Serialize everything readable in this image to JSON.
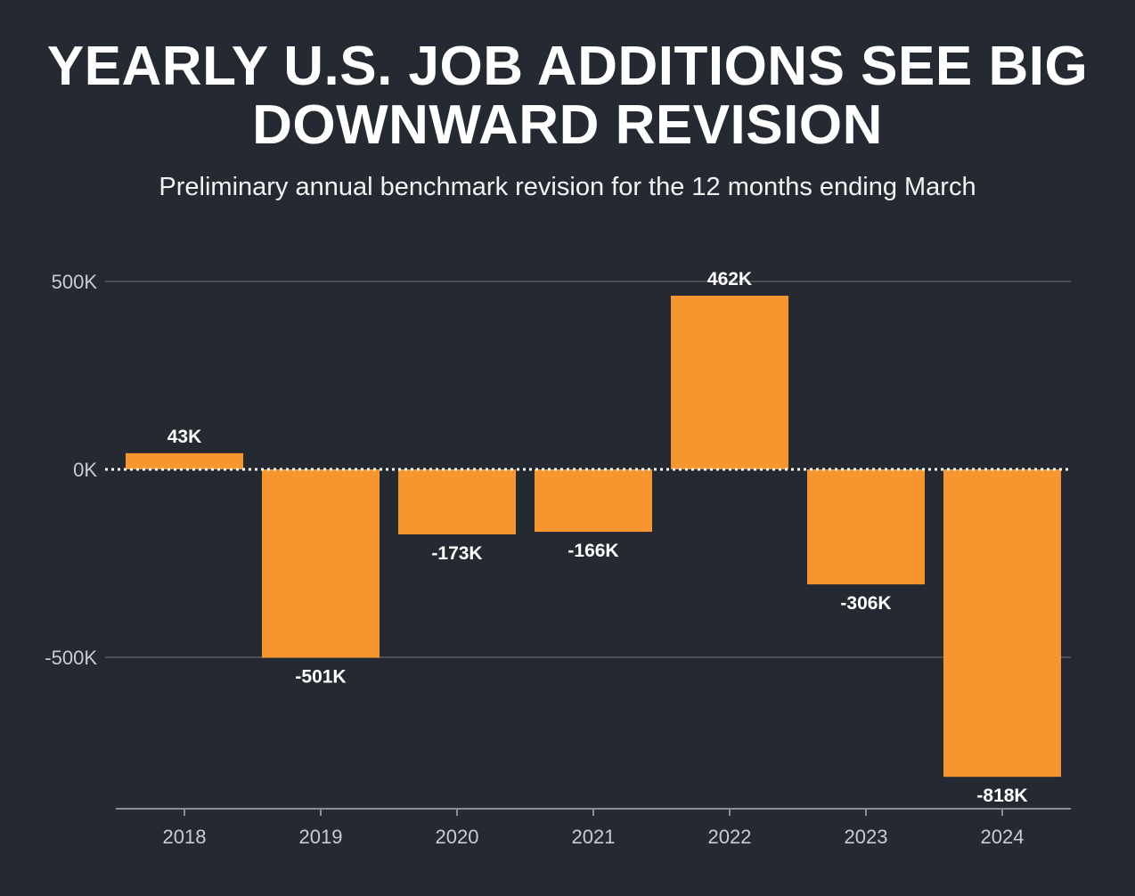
{
  "chart_data": {
    "type": "bar",
    "title": "YEARLY U.S. JOB ADDITIONS SEE BIG DOWNWARD REVISION",
    "subtitle": "Preliminary annual benchmark revision for the 12 months ending March",
    "categories": [
      "2018",
      "2019",
      "2020",
      "2021",
      "2022",
      "2023",
      "2024"
    ],
    "values": [
      43000,
      -501000,
      -173000,
      -166000,
      462000,
      -306000,
      -818000
    ],
    "data_labels": [
      "43K",
      "-501K",
      "-173K",
      "-166K",
      "462K",
      "-306K",
      "-818K"
    ],
    "yticks": [
      {
        "value": 500000,
        "label": "500K"
      },
      {
        "value": 0,
        "label": "0K"
      },
      {
        "value": -500000,
        "label": "-500K"
      }
    ],
    "ylim": [
      -900000,
      500000
    ],
    "grid": true,
    "zero_line": "dotted",
    "colors": {
      "background": "#252a32",
      "bar": "#f7952f",
      "grid": "#4a4f58",
      "text": "#ffffff",
      "tick_text": "#c9ccd1"
    }
  }
}
